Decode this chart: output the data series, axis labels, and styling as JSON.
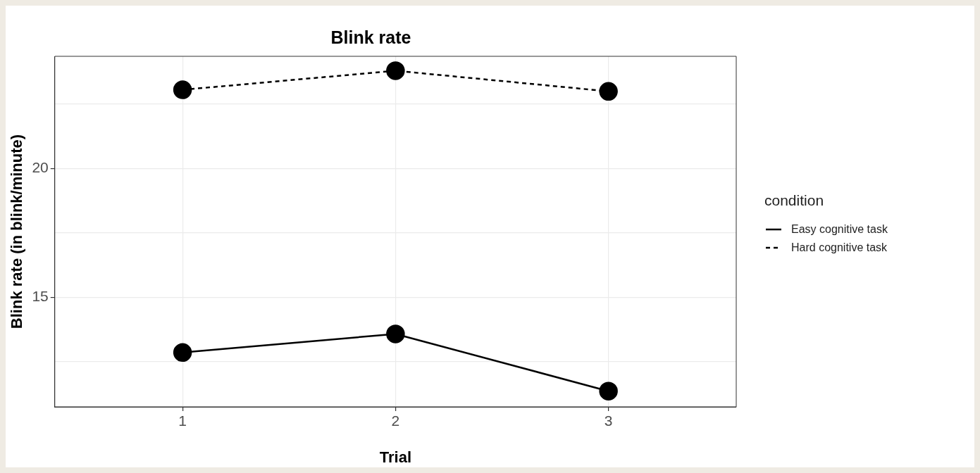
{
  "chart_data": {
    "type": "line",
    "title": "Blink rate",
    "xlabel": "Trial",
    "ylabel": "Blink rate (in blink/minute)",
    "legend_title": "condition",
    "categories": [
      "1",
      "2",
      "3"
    ],
    "series": [
      {
        "name": "Easy cognitive task",
        "color": "#000000",
        "line_style": "solid",
        "values": [
          12.86,
          13.58,
          11.36
        ]
      },
      {
        "name": "Hard cognitive task",
        "color": "#000000",
        "line_style": "dashed",
        "values": [
          23.06,
          23.8,
          23.0
        ]
      }
    ],
    "ylim": [
      10.75,
      24.36
    ],
    "yticks": [
      {
        "value": 12.5,
        "label": null
      },
      15,
      {
        "value": 17.5,
        "label": null
      },
      20,
      {
        "value": 22.5,
        "label": null
      }
    ],
    "grid": true,
    "legend": "right",
    "marker": "circle"
  }
}
